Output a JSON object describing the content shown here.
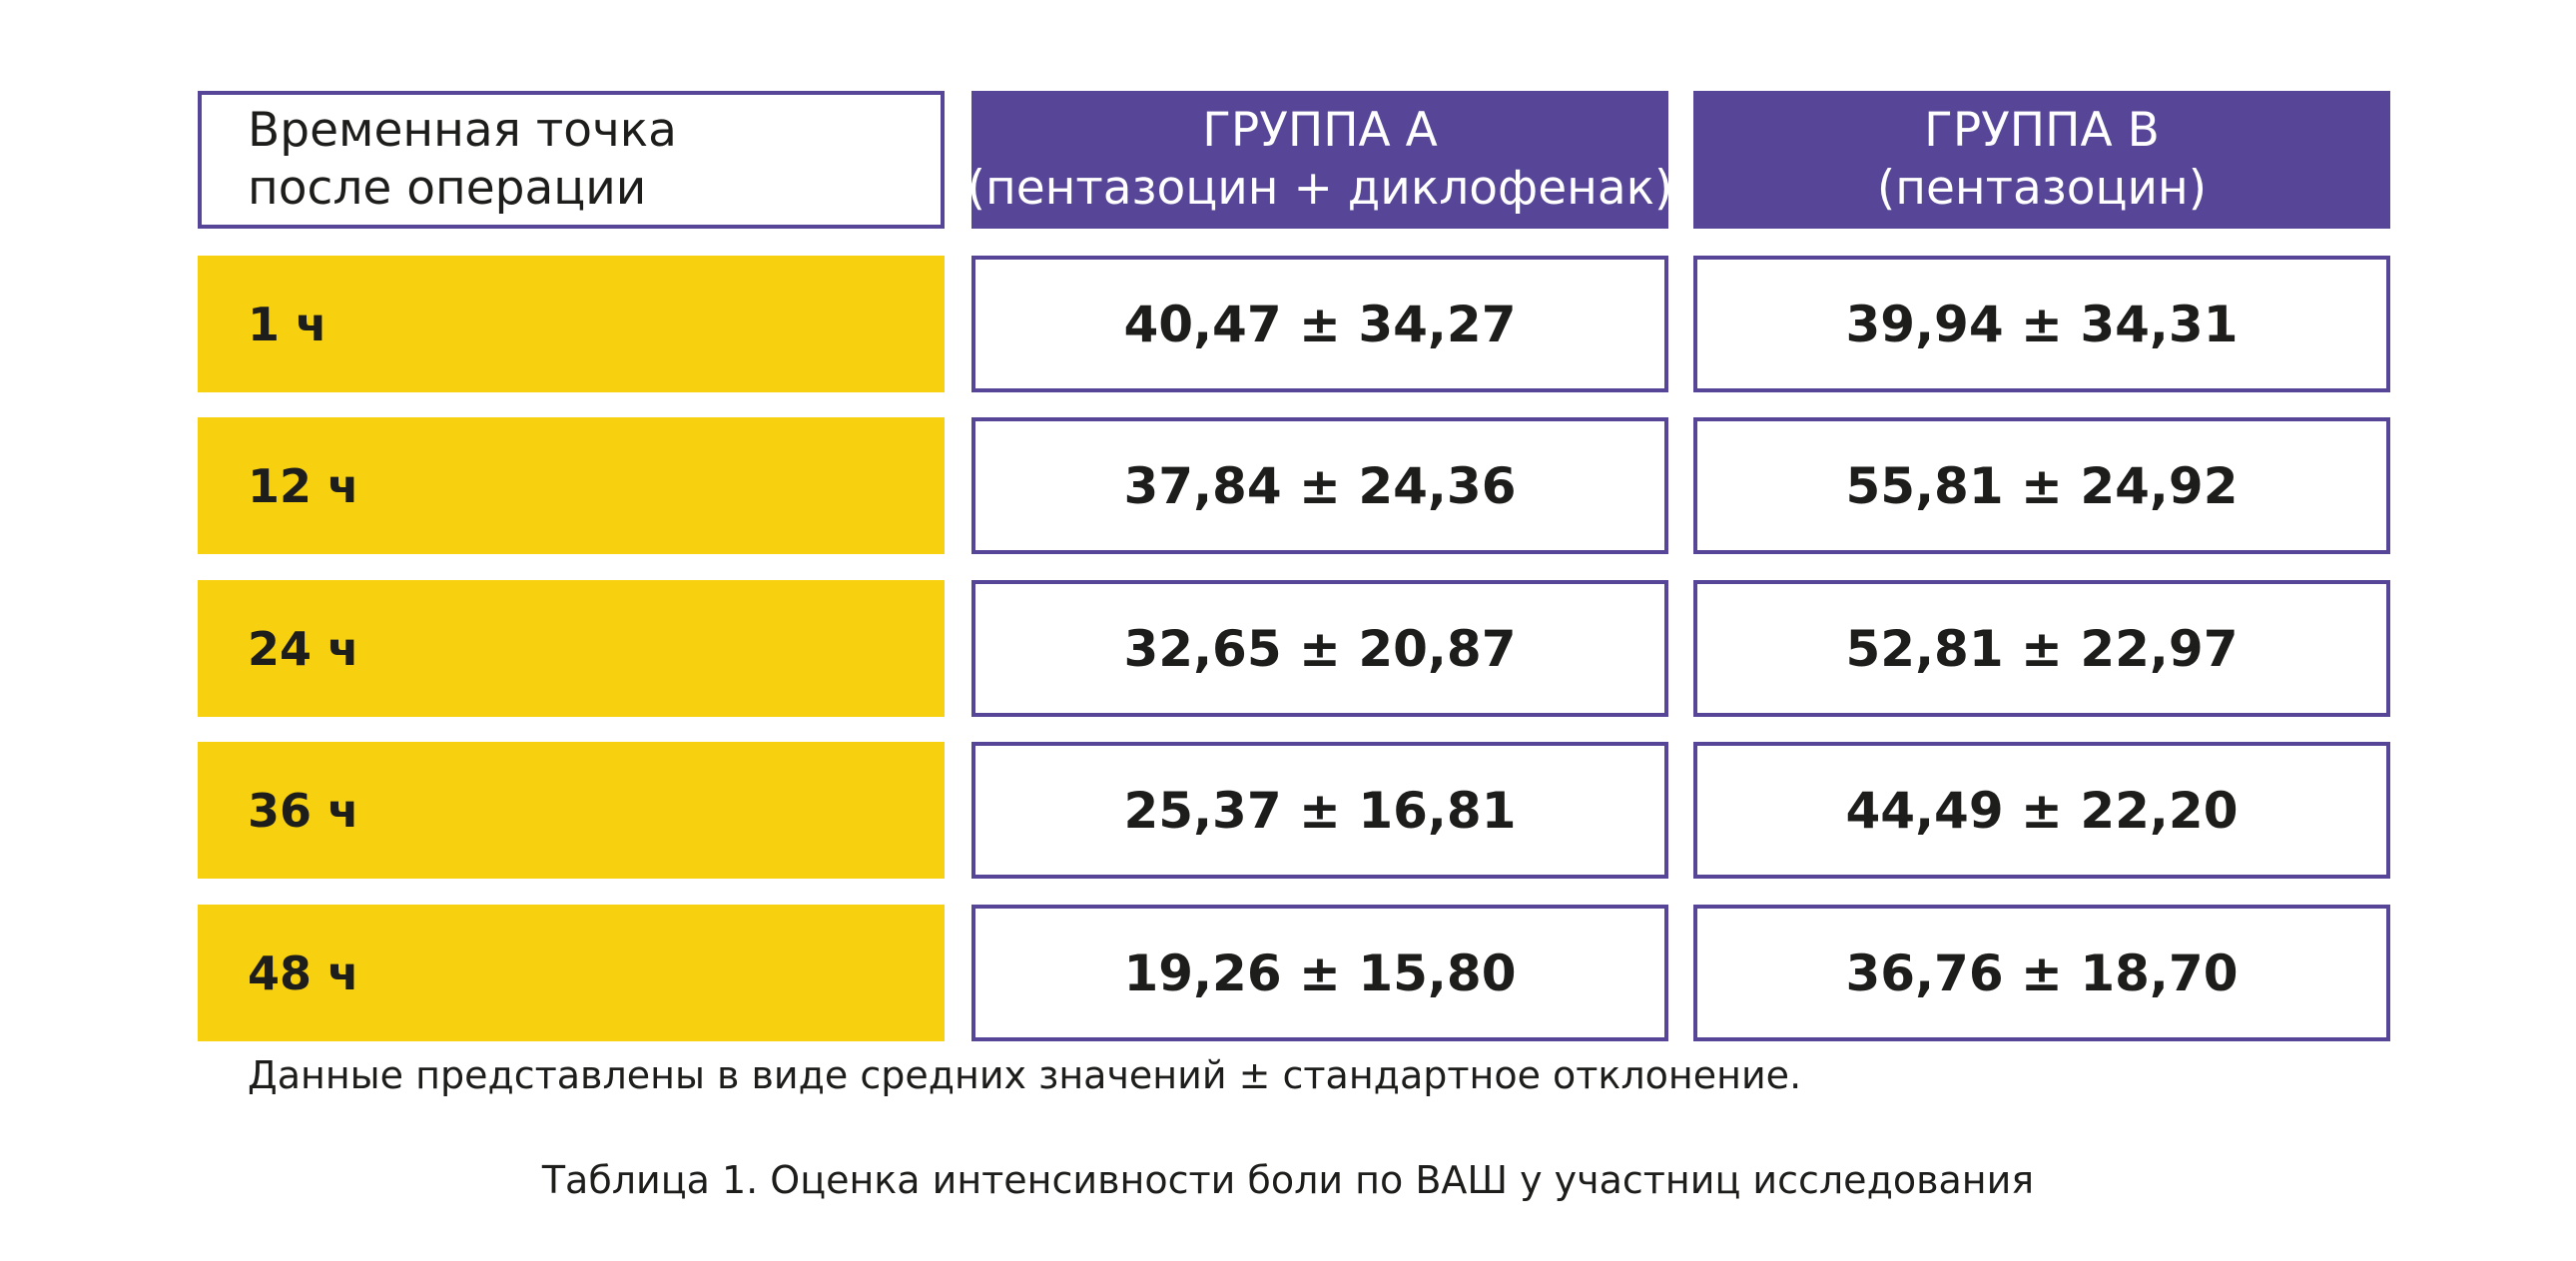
{
  "table": {
    "header": {
      "time_point": "Временная точка после операции",
      "group_a": {
        "title": "ГРУППА А",
        "subtitle": "(пентазоцин + диклофенак)"
      },
      "group_b": {
        "title": "ГРУППА В",
        "subtitle": "(пентазоцин)"
      }
    },
    "rows": [
      {
        "time": "1 ч",
        "group_a": "40,47 ± 34,27",
        "group_b": "39,94 ± 34,31"
      },
      {
        "time": "12 ч",
        "group_a": "37,84 ± 24,36",
        "group_b": "55,81 ± 24,92"
      },
      {
        "time": "24 ч",
        "group_a": "32,65 ± 20,87",
        "group_b": "52,81 ± 22,97"
      },
      {
        "time": "36 ч",
        "group_a": "25,37 ± 16,81",
        "group_b": "44,49 ± 22,20"
      },
      {
        "time": "48 ч",
        "group_a": "19,26 ± 15,80",
        "group_b": "36,76 ± 18,70"
      }
    ]
  },
  "note": "Данные представлены в виде средних значений ± стандартное отклонение.",
  "caption": "Таблица 1. Оценка интенсивности боли по ВАШ у участниц исследования",
  "colors": {
    "header_purple": "#574698",
    "row_yellow": "#f7d010",
    "text_dark": "#1d1d1b"
  }
}
